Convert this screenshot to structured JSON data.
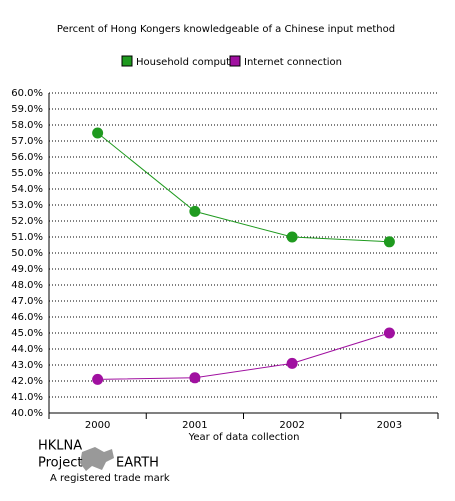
{
  "chart_data": {
    "type": "line",
    "title": "Percent of Hong Kongers knowledgeable of a Chinese input method",
    "x_label": "Year of data collection",
    "categories": [
      "2000",
      "2001",
      "2002",
      "2003"
    ],
    "series": [
      {
        "name": "Household computer",
        "color": "#1f9a1f",
        "values": [
          57.5,
          52.6,
          51.0,
          50.7
        ]
      },
      {
        "name": "Internet connection",
        "color": "#a010a0",
        "values": [
          42.1,
          42.2,
          43.1,
          45.0
        ]
      }
    ],
    "ylim": [
      40,
      60
    ],
    "yticks": [
      {
        "value": 40,
        "label": "40.0%"
      },
      {
        "value": 41,
        "label": "41.0%"
      },
      {
        "value": 42,
        "label": "42.0%"
      },
      {
        "value": 43,
        "label": "43.0%"
      },
      {
        "value": 44,
        "label": "44.0%"
      },
      {
        "value": 45,
        "label": "45.0%"
      },
      {
        "value": 46,
        "label": "46.0%"
      },
      {
        "value": 47,
        "label": "47.0%"
      },
      {
        "value": 48,
        "label": "48.0%"
      },
      {
        "value": 49,
        "label": "49.0%"
      },
      {
        "value": 50,
        "label": "50.0%"
      },
      {
        "value": 51,
        "label": "51.0%"
      },
      {
        "value": 52,
        "label": "52.0%"
      },
      {
        "value": 53,
        "label": "53.0%"
      },
      {
        "value": 54,
        "label": "54.0%"
      },
      {
        "value": 55,
        "label": "55.0%"
      },
      {
        "value": 56,
        "label": "56.0%"
      },
      {
        "value": 57,
        "label": "57.0%"
      },
      {
        "value": 58,
        "label": "58.0%"
      },
      {
        "value": 59,
        "label": "59.0%"
      },
      {
        "value": 60,
        "label": "60.0%"
      }
    ],
    "grid": true
  },
  "footer": {
    "line1": "HKLNA",
    "line2a": "Project",
    "line2b": "EARTH",
    "line3": "A registered trade mark"
  }
}
